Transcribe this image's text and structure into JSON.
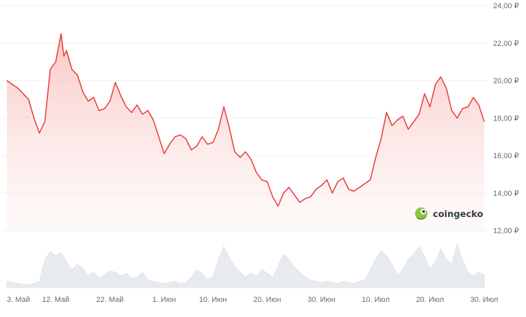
{
  "chart_data": {
    "type": "area",
    "currency_symbol": "₽",
    "y_ticks": [
      12,
      14,
      16,
      18,
      20,
      22,
      24
    ],
    "y_tick_labels": [
      "12,00 ₽",
      "14,00 ₽",
      "16,00 ₽",
      "18,00 ₽",
      "20,00 ₽",
      "22,00 ₽",
      "24,00 ₽"
    ],
    "ylim": [
      11.95,
      24.3
    ],
    "x_ticks": [
      {
        "label": "3. Май",
        "day": 0
      },
      {
        "label": "12. Май",
        "day": 9
      },
      {
        "label": "22. Май",
        "day": 19
      },
      {
        "label": "1. Июн",
        "day": 29
      },
      {
        "label": "10. Июн",
        "day": 38
      },
      {
        "label": "20. Июн",
        "day": 48
      },
      {
        "label": "30. Июн",
        "day": 58
      },
      {
        "label": "10. Июл",
        "day": 68
      },
      {
        "label": "20. Июл",
        "day": 78
      },
      {
        "label": "30. Июл",
        "day": 88
      }
    ],
    "xlim": [
      0,
      88
    ],
    "grid": true,
    "line_color": "#e8413c",
    "fill_color": "#fbd9d7",
    "volume_color": "#e7eaef",
    "price": [
      [
        0,
        20.0
      ],
      [
        1,
        19.8
      ],
      [
        2,
        19.6
      ],
      [
        3,
        19.3
      ],
      [
        4,
        19.0
      ],
      [
        5,
        18.0
      ],
      [
        6,
        17.2
      ],
      [
        7,
        17.8
      ],
      [
        8,
        20.6
      ],
      [
        9,
        21.0
      ],
      [
        10,
        22.5
      ],
      [
        10.5,
        21.3
      ],
      [
        11,
        21.6
      ],
      [
        12,
        20.6
      ],
      [
        13,
        20.3
      ],
      [
        14,
        19.4
      ],
      [
        15,
        18.9
      ],
      [
        16,
        19.1
      ],
      [
        17,
        18.4
      ],
      [
        18,
        18.5
      ],
      [
        19,
        18.9
      ],
      [
        20,
        19.9
      ],
      [
        21,
        19.2
      ],
      [
        22,
        18.6
      ],
      [
        23,
        18.3
      ],
      [
        24,
        18.7
      ],
      [
        25,
        18.2
      ],
      [
        26,
        18.4
      ],
      [
        27,
        17.9
      ],
      [
        28,
        17.0
      ],
      [
        29,
        16.1
      ],
      [
        30,
        16.6
      ],
      [
        31,
        17.0
      ],
      [
        32,
        17.1
      ],
      [
        33,
        16.9
      ],
      [
        34,
        16.3
      ],
      [
        35,
        16.5
      ],
      [
        36,
        17.0
      ],
      [
        37,
        16.6
      ],
      [
        38,
        16.7
      ],
      [
        39,
        17.4
      ],
      [
        40,
        18.6
      ],
      [
        41,
        17.5
      ],
      [
        42,
        16.2
      ],
      [
        43,
        15.9
      ],
      [
        44,
        16.2
      ],
      [
        45,
        15.8
      ],
      [
        46,
        15.1
      ],
      [
        47,
        14.7
      ],
      [
        48,
        14.6
      ],
      [
        49,
        13.8
      ],
      [
        50,
        13.3
      ],
      [
        51,
        14.0
      ],
      [
        52,
        14.3
      ],
      [
        53,
        13.9
      ],
      [
        54,
        13.5
      ],
      [
        55,
        13.7
      ],
      [
        56,
        13.8
      ],
      [
        57,
        14.2
      ],
      [
        58,
        14.4
      ],
      [
        59,
        14.7
      ],
      [
        60,
        14.0
      ],
      [
        61,
        14.6
      ],
      [
        62,
        14.8
      ],
      [
        63,
        14.2
      ],
      [
        64,
        14.1
      ],
      [
        65,
        14.3
      ],
      [
        66,
        14.5
      ],
      [
        67,
        14.7
      ],
      [
        68,
        15.9
      ],
      [
        69,
        16.9
      ],
      [
        70,
        18.3
      ],
      [
        71,
        17.6
      ],
      [
        72,
        17.9
      ],
      [
        73,
        18.1
      ],
      [
        74,
        17.4
      ],
      [
        75,
        17.8
      ],
      [
        76,
        18.2
      ],
      [
        77,
        19.3
      ],
      [
        78,
        18.6
      ],
      [
        79,
        19.8
      ],
      [
        80,
        20.2
      ],
      [
        81,
        19.6
      ],
      [
        82,
        18.4
      ],
      [
        83,
        18.0
      ],
      [
        84,
        18.5
      ],
      [
        85,
        18.6
      ],
      [
        86,
        19.1
      ],
      [
        87,
        18.7
      ],
      [
        88,
        17.8
      ]
    ],
    "volume": [
      [
        0,
        0.12
      ],
      [
        2,
        0.08
      ],
      [
        4,
        0.05
      ],
      [
        6,
        0.12
      ],
      [
        7,
        0.55
      ],
      [
        8,
        0.7
      ],
      [
        9,
        0.62
      ],
      [
        10,
        0.68
      ],
      [
        11,
        0.5
      ],
      [
        12,
        0.35
      ],
      [
        13,
        0.45
      ],
      [
        14,
        0.38
      ],
      [
        15,
        0.22
      ],
      [
        16,
        0.3
      ],
      [
        17,
        0.18
      ],
      [
        18,
        0.25
      ],
      [
        19,
        0.32
      ],
      [
        20,
        0.3
      ],
      [
        21,
        0.22
      ],
      [
        22,
        0.28
      ],
      [
        23,
        0.18
      ],
      [
        24,
        0.2
      ],
      [
        25,
        0.3
      ],
      [
        26,
        0.15
      ],
      [
        27,
        0.12
      ],
      [
        28,
        0.1
      ],
      [
        29,
        0.08
      ],
      [
        30,
        0.1
      ],
      [
        31,
        0.12
      ],
      [
        32,
        0.08
      ],
      [
        33,
        0.1
      ],
      [
        34,
        0.2
      ],
      [
        35,
        0.35
      ],
      [
        36,
        0.28
      ],
      [
        37,
        0.15
      ],
      [
        38,
        0.22
      ],
      [
        39,
        0.55
      ],
      [
        40,
        0.8
      ],
      [
        41,
        0.6
      ],
      [
        42,
        0.4
      ],
      [
        43,
        0.3
      ],
      [
        44,
        0.2
      ],
      [
        45,
        0.28
      ],
      [
        46,
        0.22
      ],
      [
        47,
        0.35
      ],
      [
        48,
        0.28
      ],
      [
        49,
        0.2
      ],
      [
        50,
        0.42
      ],
      [
        51,
        0.65
      ],
      [
        52,
        0.55
      ],
      [
        53,
        0.4
      ],
      [
        54,
        0.3
      ],
      [
        55,
        0.2
      ],
      [
        56,
        0.15
      ],
      [
        57,
        0.12
      ],
      [
        58,
        0.1
      ],
      [
        59,
        0.12
      ],
      [
        60,
        0.1
      ],
      [
        61,
        0.08
      ],
      [
        62,
        0.12
      ],
      [
        63,
        0.1
      ],
      [
        64,
        0.08
      ],
      [
        65,
        0.12
      ],
      [
        66,
        0.15
      ],
      [
        67,
        0.35
      ],
      [
        68,
        0.55
      ],
      [
        69,
        0.72
      ],
      [
        70,
        0.62
      ],
      [
        71,
        0.45
      ],
      [
        72,
        0.25
      ],
      [
        73,
        0.35
      ],
      [
        74,
        0.55
      ],
      [
        75,
        0.65
      ],
      [
        76,
        0.8
      ],
      [
        77,
        0.6
      ],
      [
        78,
        0.35
      ],
      [
        79,
        0.5
      ],
      [
        80,
        0.75
      ],
      [
        81,
        0.55
      ],
      [
        82,
        0.45
      ],
      [
        83,
        0.85
      ],
      [
        84,
        0.55
      ],
      [
        85,
        0.3
      ],
      [
        86,
        0.22
      ],
      [
        87,
        0.3
      ],
      [
        88,
        0.25
      ]
    ]
  },
  "watermark": {
    "text": "coingecko",
    "icon": "gecko-logo-icon"
  }
}
